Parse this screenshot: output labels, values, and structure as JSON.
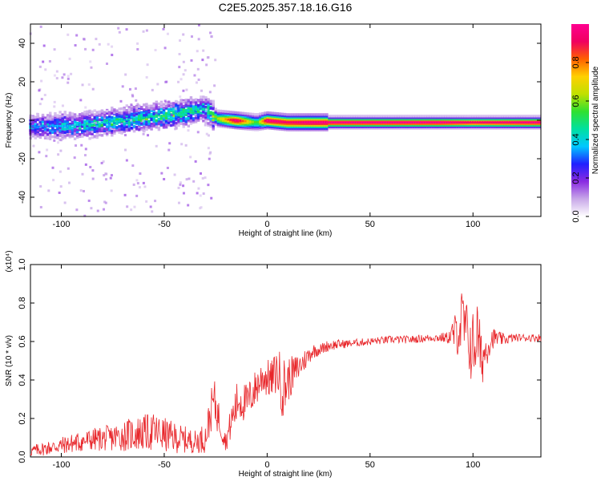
{
  "title": "C2E5.2025.357.18.16.G16",
  "chart_data": [
    {
      "type": "heatmap",
      "xlabel": "Height of straight line (km)",
      "ylabel": "Frequency (Hz)",
      "xlim": [
        -115,
        133
      ],
      "ylim": [
        -50,
        50
      ],
      "xticks": [
        -100,
        -50,
        0,
        50,
        100
      ],
      "xtick_labels": [
        "-100",
        "-50",
        "0",
        "50",
        "100"
      ],
      "yticks": [
        -40,
        -20,
        0,
        20,
        40
      ],
      "ytick_labels": [
        "-40",
        "-20",
        "0",
        "20",
        "40"
      ],
      "colorbar": {
        "label": "Normalized spectral amplitude",
        "range": [
          0,
          1
        ],
        "ticks": [
          0.0,
          0.2,
          0.4,
          0.6,
          0.8
        ],
        "tick_labels": [
          "0.0",
          "0.2",
          "0.4",
          "0.6",
          "0.8"
        ],
        "colors": [
          "#ffffff",
          "#c8a8e8",
          "#8a2be2",
          "#2020ff",
          "#00c8ff",
          "#00e0a0",
          "#30e030",
          "#c0e000",
          "#ffd000",
          "#ff6000",
          "#f00060",
          "#ff0090"
        ]
      },
      "ridge": [
        {
          "x": -115,
          "f": -3,
          "amp": 0.3
        },
        {
          "x": -100,
          "f": -3,
          "amp": 0.35
        },
        {
          "x": -85,
          "f": -2,
          "amp": 0.4
        },
        {
          "x": -70,
          "f": 0,
          "amp": 0.4
        },
        {
          "x": -55,
          "f": 2,
          "amp": 0.45
        },
        {
          "x": -40,
          "f": 4,
          "amp": 0.45
        },
        {
          "x": -30,
          "f": 6,
          "amp": 0.4
        },
        {
          "x": -24,
          "f": 1,
          "amp": 0.6
        },
        {
          "x": -15,
          "f": 0,
          "amp": 0.95
        },
        {
          "x": -5,
          "f": -1,
          "amp": 0.5
        },
        {
          "x": 0,
          "f": 0,
          "amp": 0.95
        },
        {
          "x": 10,
          "f": -1,
          "amp": 0.9
        },
        {
          "x": 20,
          "f": -1,
          "amp": 0.95
        },
        {
          "x": 50,
          "f": -1,
          "amp": 0.95
        },
        {
          "x": 85,
          "f": -1,
          "amp": 0.95
        },
        {
          "x": 100,
          "f": -1,
          "amp": 0.9
        },
        {
          "x": 133,
          "f": -1,
          "amp": 0.95
        }
      ]
    },
    {
      "type": "line",
      "xlabel": "Height of straight line (km)",
      "ylabel": "SNR (10 * v/v)",
      "scale_label": "(x10⁴)",
      "xlim": [
        -115,
        133
      ],
      "ylim": [
        0,
        1.0
      ],
      "xticks": [
        -100,
        -50,
        0,
        50,
        100
      ],
      "xtick_labels": [
        "-100",
        "-50",
        "0",
        "50",
        "100"
      ],
      "yticks": [
        0.0,
        0.2,
        0.4,
        0.6,
        0.8,
        1.0
      ],
      "ytick_labels": [
        "0.0",
        "0.2",
        "0.4",
        "0.6",
        "0.8",
        "1.0"
      ],
      "series": [
        {
          "name": "SNR",
          "color": "#e8262a",
          "x": [
            -115,
            -105,
            -95,
            -85,
            -75,
            -65,
            -55,
            -45,
            -35,
            -30,
            -26,
            -24,
            -22,
            -20,
            -17,
            -14,
            -10,
            -6,
            -2,
            2,
            5,
            8,
            10,
            14,
            18,
            22,
            26,
            30,
            40,
            50,
            60,
            70,
            80,
            88,
            92,
            95,
            98,
            100,
            102,
            104,
            106,
            108,
            110,
            115,
            120,
            125,
            133
          ],
          "y": [
            0.03,
            0.05,
            0.07,
            0.09,
            0.1,
            0.12,
            0.13,
            0.1,
            0.08,
            0.1,
            0.3,
            0.22,
            0.15,
            0.08,
            0.2,
            0.3,
            0.28,
            0.35,
            0.42,
            0.4,
            0.45,
            0.35,
            0.4,
            0.45,
            0.5,
            0.55,
            0.56,
            0.58,
            0.59,
            0.6,
            0.61,
            0.61,
            0.62,
            0.62,
            0.65,
            0.7,
            0.6,
            0.55,
            0.65,
            0.5,
            0.55,
            0.6,
            0.62,
            0.61,
            0.62,
            0.62,
            0.62
          ],
          "noise": [
            0.03,
            0.04,
            0.05,
            0.06,
            0.07,
            0.09,
            0.1,
            0.08,
            0.06,
            0.08,
            0.12,
            0.1,
            0.08,
            0.05,
            0.1,
            0.12,
            0.1,
            0.1,
            0.1,
            0.1,
            0.12,
            0.18,
            0.12,
            0.08,
            0.06,
            0.04,
            0.03,
            0.03,
            0.02,
            0.02,
            0.02,
            0.02,
            0.02,
            0.03,
            0.12,
            0.2,
            0.16,
            0.22,
            0.18,
            0.16,
            0.1,
            0.08,
            0.05,
            0.03,
            0.02,
            0.02,
            0.02
          ]
        }
      ]
    }
  ]
}
